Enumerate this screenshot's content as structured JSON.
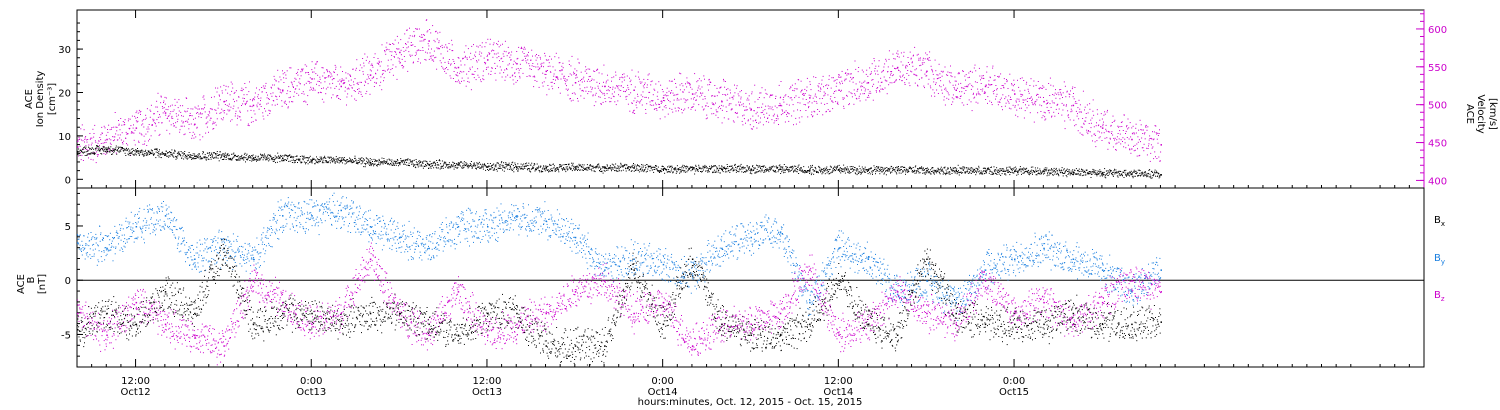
{
  "chart_data": [
    {
      "type": "scatter",
      "panel": "top",
      "ylabel_left": [
        "ACE",
        "Ion Density",
        "[cm⁻³]"
      ],
      "ylabel_right": [
        "ACE",
        "Velocity",
        "[km/s]"
      ],
      "left_axis": {
        "ylim": [
          -2,
          39
        ],
        "ticks": [
          0,
          10,
          20,
          30
        ]
      },
      "right_axis": {
        "ylim": [
          390,
          625
        ],
        "ticks": [
          400,
          450,
          500,
          550,
          600
        ]
      },
      "x_range_hours": [
        0,
        92
      ],
      "data_end_hour": 74,
      "series": [
        {
          "name": "",
          "axis": "left",
          "color": "#000000",
          "x": [
            0,
            2,
            4,
            6,
            8,
            10,
            12,
            14,
            16,
            18,
            20,
            22,
            24,
            26,
            28,
            30,
            32,
            34,
            36,
            38,
            40,
            42,
            44,
            46,
            48,
            50,
            52,
            54,
            56,
            58,
            60,
            62,
            64,
            66,
            68,
            70,
            72,
            74
          ],
          "values": [
            6.5,
            7,
            6.5,
            6,
            5.5,
            5.5,
            5,
            5,
            4.5,
            4.5,
            4,
            4,
            3.5,
            3.5,
            3,
            3,
            2.8,
            2.8,
            2.8,
            2.8,
            2.5,
            2.5,
            2.5,
            2.5,
            2.5,
            2.3,
            2.3,
            2.3,
            2.2,
            2.2,
            2.2,
            2,
            2,
            2,
            1.8,
            1.6,
            1.4,
            1.2
          ]
        },
        {
          "name": "",
          "axis": "right",
          "color": "#cc00cc",
          "x": [
            0,
            2,
            4,
            6,
            8,
            10,
            12,
            14,
            16,
            18,
            20,
            22,
            24,
            26,
            28,
            30,
            32,
            34,
            36,
            38,
            40,
            42,
            44,
            46,
            48,
            50,
            52,
            54,
            56,
            58,
            60,
            62,
            64,
            66,
            68,
            70,
            72,
            74
          ],
          "values": [
            445,
            455,
            470,
            490,
            475,
            505,
            500,
            520,
            535,
            525,
            540,
            570,
            585,
            550,
            560,
            555,
            545,
            530,
            525,
            520,
            510,
            515,
            505,
            495,
            500,
            510,
            520,
            530,
            550,
            545,
            520,
            525,
            515,
            505,
            500,
            470,
            455,
            448
          ]
        }
      ]
    },
    {
      "type": "scatter",
      "panel": "bottom",
      "ylabel_left": [
        "ACE",
        "B",
        "[nT]"
      ],
      "legend": [
        {
          "label": "B",
          "sub": "x",
          "color": "#000000"
        },
        {
          "label": "B",
          "sub": "y",
          "color": "#1a7fe0"
        },
        {
          "label": "B",
          "sub": "z",
          "color": "#cc00cc"
        }
      ],
      "legend_position": "right",
      "ylim": [
        -8,
        8.5
      ],
      "ticks": [
        -5,
        0,
        5
      ],
      "zero_line": true,
      "x_range_hours": [
        0,
        92
      ],
      "data_end_hour": 74,
      "series": [
        {
          "name": "Bx",
          "color": "#000000",
          "x": [
            0,
            2,
            4,
            6,
            8,
            10,
            12,
            14,
            16,
            18,
            20,
            22,
            24,
            26,
            28,
            30,
            32,
            34,
            36,
            38,
            40,
            42,
            44,
            46,
            48,
            50,
            52,
            54,
            56,
            58,
            60,
            62,
            64,
            66,
            68,
            70,
            72,
            74
          ],
          "values": [
            -4.5,
            -3,
            -4,
            -1,
            -3,
            3,
            -4,
            -3,
            -3,
            -4,
            -3,
            -3,
            -4,
            -5,
            -3,
            -3,
            -6,
            -6,
            -6,
            1,
            -4,
            2,
            -4,
            -5,
            -5,
            -4,
            0,
            -4,
            -5,
            2,
            -3,
            -4,
            -4,
            -4,
            -3,
            -4,
            -4,
            -3.8
          ]
        },
        {
          "name": "By",
          "color": "#1a7fe0",
          "x": [
            0,
            2,
            4,
            6,
            8,
            10,
            12,
            14,
            16,
            18,
            20,
            22,
            24,
            26,
            28,
            30,
            32,
            34,
            36,
            38,
            40,
            42,
            44,
            46,
            48,
            50,
            52,
            54,
            56,
            58,
            60,
            62,
            64,
            66,
            68,
            70,
            72,
            74
          ],
          "values": [
            3.5,
            3,
            5,
            6,
            2,
            3,
            2,
            6,
            6,
            6.5,
            5,
            4,
            3,
            5,
            5,
            6,
            5.5,
            4,
            1,
            2,
            1.5,
            0.5,
            3,
            4,
            4.5,
            -2,
            3,
            2,
            -1,
            0,
            -2,
            1,
            2,
            3,
            2,
            1,
            -1,
            1
          ]
        },
        {
          "name": "Bz",
          "color": "#cc00cc",
          "x": [
            0,
            2,
            4,
            6,
            8,
            10,
            12,
            14,
            16,
            18,
            20,
            22,
            24,
            26,
            28,
            30,
            32,
            34,
            36,
            38,
            40,
            42,
            44,
            46,
            48,
            50,
            52,
            54,
            56,
            58,
            60,
            62,
            64,
            66,
            68,
            70,
            72,
            74
          ],
          "values": [
            -3,
            -5,
            -2,
            -4,
            -5,
            -6,
            0,
            -2,
            -4,
            -3,
            2,
            -3,
            -5,
            -1,
            -5,
            -4,
            -3,
            -1,
            0,
            -3,
            -2,
            -6,
            -4,
            -4,
            -3,
            1,
            -5,
            -4,
            -1,
            -3,
            -4,
            0,
            -3,
            -2,
            -4,
            -2,
            0,
            -1
          ]
        }
      ]
    }
  ],
  "x_axis": {
    "ticks": [
      {
        "hour": 4,
        "time": "12:00",
        "date": "Oct12"
      },
      {
        "hour": 16,
        "time": "0:00",
        "date": "Oct13"
      },
      {
        "hour": 28,
        "time": "12:00",
        "date": "Oct13"
      },
      {
        "hour": 40,
        "time": "0:00",
        "date": "Oct14"
      },
      {
        "hour": 52,
        "time": "12:00",
        "date": "Oct14"
      },
      {
        "hour": 64,
        "time": "0:00",
        "date": "Oct15"
      }
    ],
    "label": "hours:minutes, Oct. 12, 2015 - Oct. 15, 2015"
  }
}
